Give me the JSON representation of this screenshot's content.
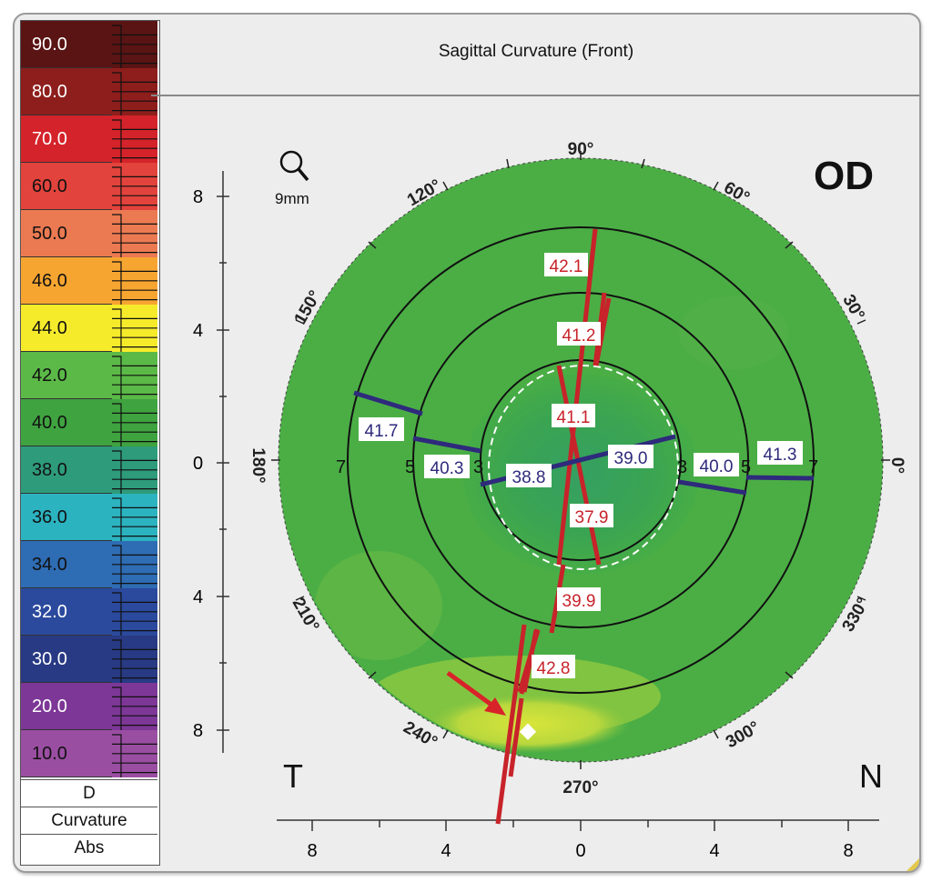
{
  "title": "Sagittal Curvature (Front)",
  "eye_label": "OD",
  "zoom_label": "9mm",
  "side_left": "T",
  "side_right": "N",
  "scale": {
    "steps": [
      {
        "label": "90.0",
        "color": "#5a1413",
        "light": true
      },
      {
        "label": "80.0",
        "color": "#8e1e1c",
        "light": true
      },
      {
        "label": "70.0",
        "color": "#d4232a",
        "light": true
      },
      {
        "label": "60.0",
        "color": "#e2433c",
        "light": false
      },
      {
        "label": "50.0",
        "color": "#eb7a52",
        "light": false
      },
      {
        "label": "46.0",
        "color": "#f7a531",
        "light": false
      },
      {
        "label": "44.0",
        "color": "#f6eb2b",
        "light": false
      },
      {
        "label": "42.0",
        "color": "#5bb947",
        "light": false
      },
      {
        "label": "40.0",
        "color": "#3fa340",
        "light": false
      },
      {
        "label": "38.0",
        "color": "#2e9b7a",
        "light": false
      },
      {
        "label": "36.0",
        "color": "#2cb3c0",
        "light": false
      },
      {
        "label": "34.0",
        "color": "#2e6cb3",
        "light": false
      },
      {
        "label": "32.0",
        "color": "#2b4a9d",
        "light": true
      },
      {
        "label": "30.0",
        "color": "#283a84",
        "light": true
      },
      {
        "label": "20.0",
        "color": "#7d3796",
        "light": true
      },
      {
        "label": "10.0",
        "color": "#9a4ea2",
        "light": false
      }
    ],
    "unit": "D",
    "type": "Curvature",
    "mode": "Abs"
  },
  "angle_labels": [
    "90°",
    "60°",
    "30°",
    "0°",
    "330°",
    "300°",
    "270°",
    "240°",
    "210°",
    "180°",
    "150°",
    "120°"
  ],
  "y_ticks": [
    "8",
    "4",
    "0",
    "4",
    "8"
  ],
  "x_ticks": [
    "8",
    "4",
    "0",
    "4",
    "8"
  ],
  "ring_labels": {
    "r7_left": "7",
    "r5_left": "5",
    "r3_left": "3",
    "r3_right": "3",
    "r5_right": "5",
    "r7_right": "7"
  },
  "values": {
    "v421": "42.1",
    "v412": "41.2",
    "v411": "41.1",
    "v379": "37.9",
    "v399": "39.9",
    "v428": "42.8",
    "v417": "41.7",
    "v403": "40.3",
    "v388": "38.8",
    "v390": "39.0",
    "v400": "40.0",
    "v413": "41.3"
  },
  "colors": {
    "red": "#c8232a",
    "blue": "#2e2a7c",
    "map_green": "#4aad44",
    "highlight": "#cde13a"
  }
}
